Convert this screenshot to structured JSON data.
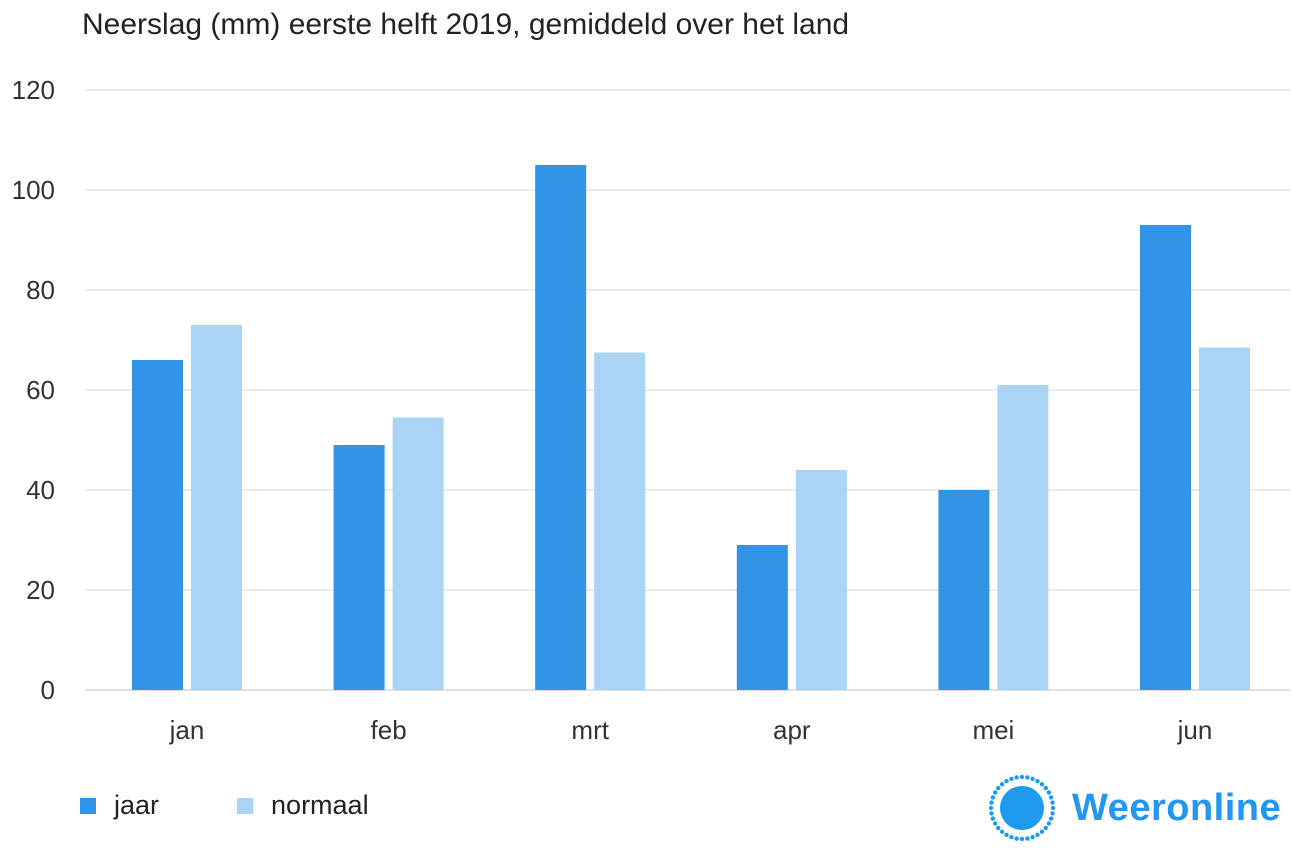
{
  "chart_data": {
    "type": "bar",
    "title": "Neerslag (mm) eerste helft 2019, gemiddeld over het land",
    "categories": [
      "jan",
      "feb",
      "mrt",
      "apr",
      "mei",
      "jun"
    ],
    "series": [
      {
        "name": "jaar",
        "color": "#3194E6",
        "values": [
          66,
          49,
          105,
          29,
          40,
          93
        ]
      },
      {
        "name": "normaal",
        "color": "#AAD4F5",
        "values": [
          73,
          54.5,
          67.5,
          44,
          61,
          68.5
        ]
      }
    ],
    "ylim": [
      0,
      120
    ],
    "yticks": [
      "0",
      "20",
      "40",
      "60",
      "80",
      "100",
      "120"
    ],
    "grid": true,
    "legend": "bottom-left"
  },
  "brand": {
    "name": "Weeronline",
    "icon": "sun-icon",
    "color": "#2196F3"
  }
}
